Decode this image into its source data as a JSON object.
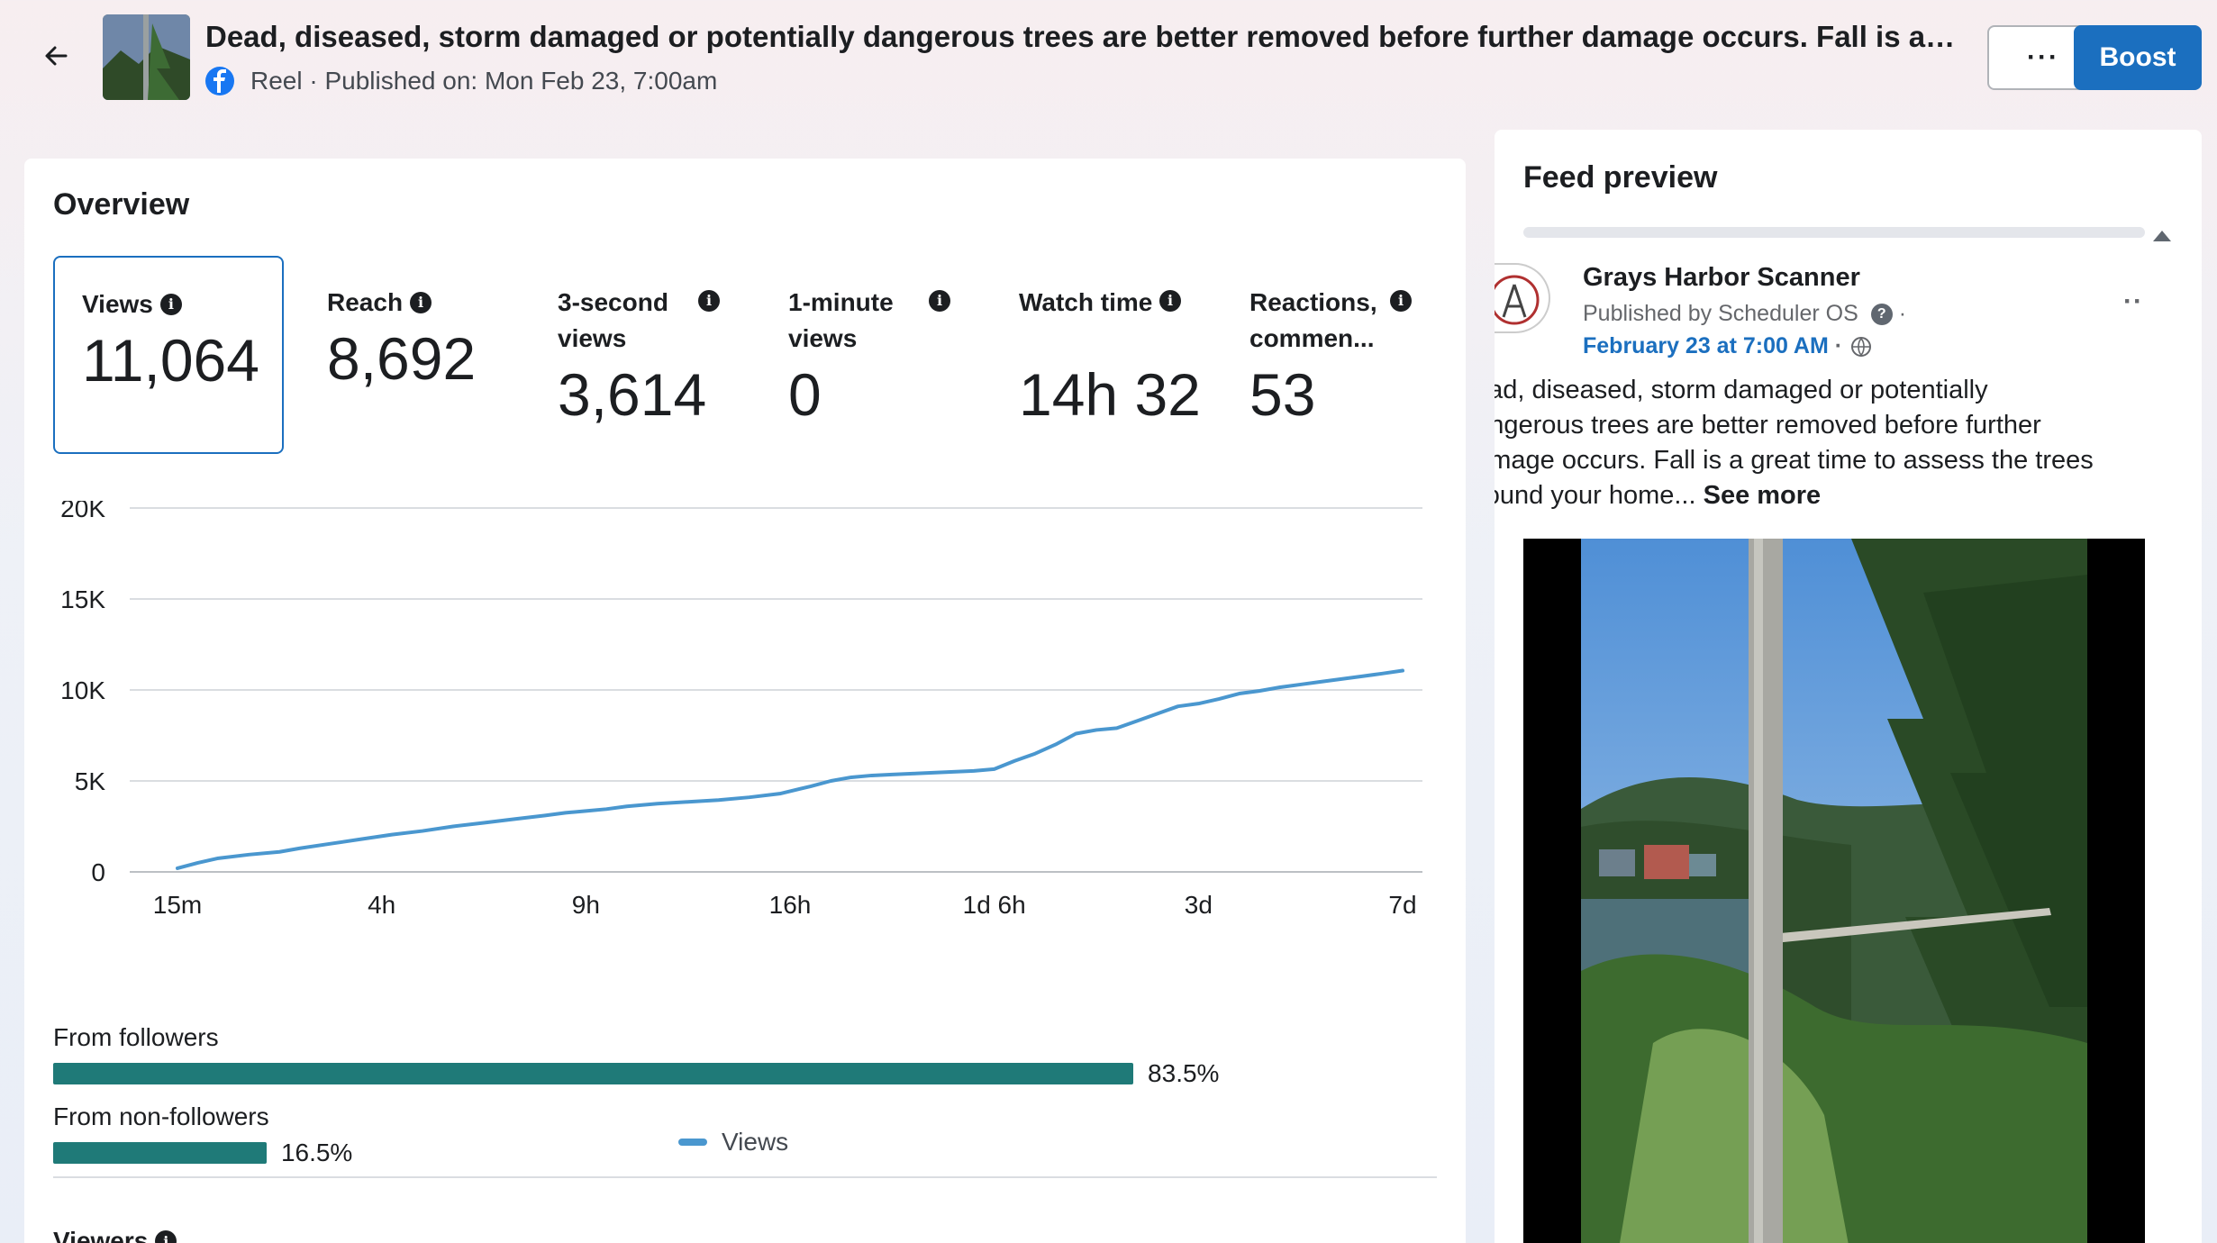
{
  "header": {
    "title": "Dead, diseased, storm damaged or potentially dangerous trees are better removed before further damage occurs. Fall is a great ti...",
    "post_type": "Reel",
    "published_text": "Published on: Mon Feb 23, 7:00am",
    "more_label": "···",
    "boost_label": "Boost"
  },
  "overview": {
    "title": "Overview",
    "metrics": [
      {
        "label": "Views",
        "value": "11,064"
      },
      {
        "label": "Reach",
        "value": "8,692"
      },
      {
        "label": "3-second views",
        "value": "3,614"
      },
      {
        "label": "1-minute views",
        "value": "0"
      },
      {
        "label": "Watch time",
        "value": "14h 32m"
      },
      {
        "label": "Reactions, commen...",
        "value": "53"
      }
    ],
    "legend": "Views",
    "from_followers_label": "From followers",
    "from_followers_pct": "83.5%",
    "from_followers_value": 83.5,
    "from_non_followers_label": "From non-followers",
    "from_non_followers_pct": "16.5%",
    "from_non_followers_value": 16.5,
    "viewers_label": "Viewers"
  },
  "chart_data": {
    "type": "line",
    "ytick_labels": [
      "0",
      "5K",
      "10K",
      "15K",
      "20K"
    ],
    "ylim": [
      0,
      20000
    ],
    "xtick_labels": [
      "15m",
      "4h",
      "9h",
      "16h",
      "1d 6h",
      "3d",
      "7d"
    ],
    "series": [
      {
        "name": "Views",
        "color": "#4a97cf",
        "x": [
          0,
          0.1,
          0.2,
          0.35,
          0.5,
          0.6,
          0.75,
          0.9,
          1.05,
          1.2,
          1.35,
          1.5,
          1.65,
          1.8,
          1.9,
          2.0,
          2.1,
          2.2,
          2.35,
          2.5,
          2.65,
          2.8,
          2.95,
          3.1,
          3.2,
          3.3,
          3.4,
          3.5,
          3.6,
          3.7,
          3.8,
          3.9,
          4.0,
          4.1,
          4.2,
          4.3,
          4.4,
          4.5,
          4.6,
          4.7,
          4.8,
          4.9,
          5.0,
          5.1,
          5.2,
          5.3,
          5.4,
          5.5,
          5.6,
          5.7,
          5.8,
          5.9,
          6.0
        ],
        "values": [
          200,
          500,
          750,
          950,
          1100,
          1300,
          1550,
          1800,
          2050,
          2250,
          2500,
          2700,
          2900,
          3100,
          3250,
          3350,
          3450,
          3600,
          3750,
          3850,
          3950,
          4100,
          4300,
          4700,
          5000,
          5200,
          5300,
          5350,
          5400,
          5450,
          5500,
          5550,
          5650,
          6100,
          6500,
          7000,
          7600,
          7800,
          7900,
          8300,
          8700,
          9100,
          9250,
          9500,
          9800,
          9950,
          10150,
          10300,
          10450,
          10600,
          10750,
          10900,
          11064
        ]
      }
    ]
  },
  "feed": {
    "title": "Feed preview",
    "page_name": "Grays Harbor Scanner",
    "published_by": "Published by Scheduler OS",
    "date_text": "February 23 at 7:00 AM",
    "text_lines": [
      "Dead, diseased, storm damaged or potentially",
      "dangerous trees are better removed before further",
      "damage occurs.  Fall is a great time to assess the trees",
      "around your home..."
    ],
    "see_more": "See more",
    "menu_label": "··"
  }
}
